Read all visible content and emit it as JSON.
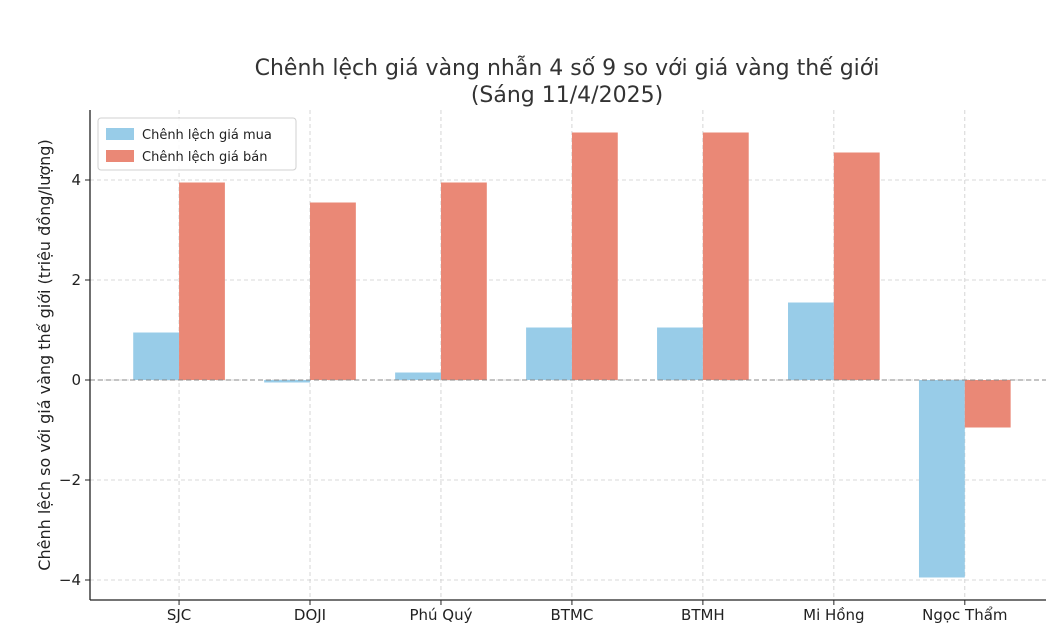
{
  "chart_data": {
    "type": "bar",
    "title": "Chênh lệch giá vàng nhẫn 4 số 9 so với giá vàng thế giới",
    "subtitle": "(Sáng 11/4/2025)",
    "xlabel": "",
    "ylabel": "Chênh lệch so với giá vàng thế giới (triệu đồng/lượng)",
    "categories": [
      "SJC",
      "DOJI",
      "Phú Quý",
      "BTMC",
      "BTMH",
      "Mi Hồng",
      "Ngọc Thẩm"
    ],
    "series": [
      {
        "name": "Chênh lệch giá mua",
        "color": "#98CCE8",
        "values": [
          0.95,
          -0.05,
          0.15,
          1.05,
          1.05,
          1.55,
          -3.95
        ]
      },
      {
        "name": "Chênh lệch giá bán",
        "color": "#EA8876",
        "values": [
          3.95,
          3.55,
          3.95,
          4.95,
          4.95,
          4.55,
          -0.95
        ]
      }
    ],
    "ylim": [
      -4.4,
      5.4
    ],
    "yticks": [
      -4,
      -2,
      0,
      2,
      4
    ],
    "ytick_labels": [
      "−4",
      "−2",
      "0",
      "2",
      "4"
    ],
    "grid": true,
    "legend_position": "top-left"
  }
}
